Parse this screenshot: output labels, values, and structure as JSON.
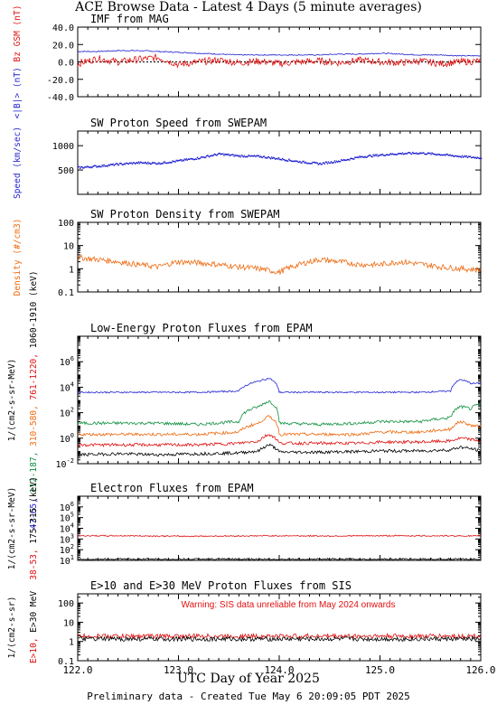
{
  "page": {
    "title": "ACE Browse Data - Latest 4 Days (5 minute averages)",
    "x_axis_label": "UTC Day of Year 2025",
    "footer": "Preliminary data - Created Tue May  6 20:09:05 PDT 2025",
    "x_ticks": [
      "122.0",
      "123.0",
      "124.0",
      "125.0",
      "126.0"
    ]
  },
  "chart_data": [
    {
      "type": "line",
      "title": "IMF from MAG",
      "ylabel_parts": [
        {
          "text": "<|B|>",
          "unit": " (nT)",
          "color": "#1f1fd0"
        },
        {
          "text": "Bz GSM",
          "unit": " (nT)",
          "color": "#e01010"
        }
      ],
      "ylim": [
        -40,
        40
      ],
      "yticks": [
        "40.0",
        "20.0",
        "0.0",
        "-20.0",
        "-40.0"
      ],
      "xlim": [
        122,
        126
      ],
      "series": [
        {
          "color": "#1f1fd0",
          "x": [
            122.0,
            122.2,
            122.4,
            122.6,
            122.8,
            123.0,
            123.2,
            123.4,
            123.6,
            123.8,
            124.0,
            124.2,
            124.4,
            124.6,
            124.8,
            125.0,
            125.2,
            125.4,
            125.6,
            125.8,
            126.0
          ],
          "y": [
            12,
            12,
            13,
            13,
            12,
            11,
            10,
            9,
            8,
            8,
            8,
            8,
            8,
            9,
            9,
            10,
            9,
            8,
            8,
            7,
            7
          ]
        },
        {
          "color": "#e01010",
          "x": [
            122.0,
            122.2,
            122.4,
            122.6,
            122.8,
            123.0,
            123.2,
            123.4,
            123.6,
            123.8,
            124.0,
            124.2,
            124.4,
            124.6,
            124.8,
            125.0,
            125.2,
            125.4,
            125.6,
            125.8,
            126.0
          ],
          "y": [
            -2,
            4,
            0,
            3,
            5,
            -3,
            0,
            2,
            -1,
            1,
            -2,
            0,
            1,
            -1,
            2,
            0,
            -1,
            1,
            -2,
            0,
            1
          ]
        }
      ]
    },
    {
      "type": "scatter",
      "title": "SW Proton Speed from SWEPAM",
      "ylabel_parts": [
        {
          "text": "Speed (km/sec)",
          "unit": "",
          "color": "#1f1fd0"
        }
      ],
      "ylim": [
        0,
        1300
      ],
      "yticks": [
        "1000",
        "500"
      ],
      "xlim": [
        122,
        126
      ],
      "series": [
        {
          "color": "#1f1fd0",
          "x": [
            122.0,
            122.2,
            122.4,
            122.6,
            122.8,
            123.0,
            123.2,
            123.4,
            123.6,
            123.8,
            124.0,
            124.2,
            124.4,
            124.6,
            124.8,
            125.0,
            125.2,
            125.4,
            125.6,
            125.8,
            126.0
          ],
          "y": [
            560,
            590,
            630,
            660,
            650,
            700,
            760,
            840,
            800,
            790,
            740,
            680,
            640,
            700,
            780,
            820,
            850,
            860,
            830,
            790,
            760
          ]
        }
      ]
    },
    {
      "type": "line",
      "title": "SW Proton Density from SWEPAM",
      "ylabel_parts": [
        {
          "text": "Density (#/cm3)",
          "unit": "",
          "color": "#ee6a10"
        }
      ],
      "ylim": [
        0.1,
        100
      ],
      "log": true,
      "yticks": [
        "100",
        "10",
        "1",
        "0.1"
      ],
      "xlim": [
        122,
        126
      ],
      "series": [
        {
          "color": "#ee6a10",
          "x": [
            122.0,
            122.2,
            122.4,
            122.6,
            122.8,
            123.0,
            123.2,
            123.4,
            123.6,
            123.8,
            124.0,
            124.2,
            124.4,
            124.6,
            124.8,
            125.0,
            125.2,
            125.4,
            125.6,
            125.8,
            126.0
          ],
          "y": [
            3,
            2.5,
            2,
            1.5,
            1.2,
            2,
            1.8,
            1.5,
            1.2,
            1,
            0.7,
            1.5,
            2.5,
            2,
            1.5,
            1.5,
            2,
            1.6,
            1.2,
            1,
            0.9
          ]
        }
      ]
    },
    {
      "type": "line",
      "title": "Low-Energy Proton Fluxes from EPAM",
      "ylabel_parts": [
        {
          "text": "47-65,",
          "unit": "",
          "color": "#1f1fd0"
        },
        {
          "text": "112-187,",
          "unit": "",
          "color": "#109040"
        },
        {
          "text": "310-580,",
          "unit": "",
          "color": "#ee6a10"
        },
        {
          "text": "761-1220,",
          "unit": "",
          "color": "#e01010"
        },
        {
          "text": "1060-1910 (keV)",
          "unit": "",
          "color": "#000000"
        }
      ],
      "yunit": "1/(cm2-s-sr-MeV)",
      "ylim": [
        0.01,
        100000000
      ],
      "log": true,
      "yticks": [
        "10^6",
        "10^4",
        "10^2",
        "10^0",
        "10^-2"
      ],
      "xlim": [
        122,
        126
      ],
      "series": [
        {
          "color": "#1f1fd0",
          "x": [
            122.0,
            122.4,
            122.8,
            123.2,
            123.6,
            123.8,
            123.9,
            124.0,
            124.4,
            124.8,
            125.0,
            125.4,
            125.7,
            125.8,
            125.9,
            126.0
          ],
          "y": [
            4000,
            4000,
            4000,
            4000,
            5000,
            30000,
            50000,
            4000,
            4000,
            4000,
            4000,
            4000,
            5000,
            40000,
            20000,
            20000
          ]
        },
        {
          "color": "#109040",
          "x": [
            122.0,
            122.4,
            122.8,
            123.2,
            123.6,
            123.8,
            123.9,
            124.0,
            124.4,
            124.8,
            125.0,
            125.4,
            125.7,
            125.8,
            125.9,
            126.0
          ],
          "y": [
            15,
            15,
            15,
            12,
            20,
            300,
            800,
            15,
            12,
            15,
            20,
            20,
            40,
            300,
            200,
            500
          ]
        },
        {
          "color": "#ee6a10",
          "x": [
            122.0,
            122.4,
            122.8,
            123.2,
            123.6,
            123.8,
            123.9,
            124.0,
            124.4,
            124.8,
            125.0,
            125.4,
            125.7,
            125.8,
            125.9,
            126.0
          ],
          "y": [
            2,
            2,
            2,
            2,
            3,
            15,
            50,
            2,
            2,
            2,
            3,
            3,
            5,
            20,
            10,
            8
          ]
        },
        {
          "color": "#e01010",
          "x": [
            122.0,
            122.4,
            122.8,
            123.2,
            123.6,
            123.8,
            123.9,
            124.0,
            124.4,
            124.8,
            125.0,
            125.4,
            125.7,
            125.8,
            125.9,
            126.0
          ],
          "y": [
            0.3,
            0.3,
            0.3,
            0.3,
            0.4,
            0.6,
            2,
            0.4,
            0.4,
            0.4,
            0.5,
            0.5,
            0.6,
            1,
            0.8,
            0.6
          ]
        },
        {
          "color": "#000000",
          "x": [
            122.0,
            122.4,
            122.8,
            123.2,
            123.6,
            123.8,
            123.9,
            124.0,
            124.4,
            124.8,
            125.0,
            125.4,
            125.7,
            125.8,
            125.9,
            126.0
          ],
          "y": [
            0.05,
            0.06,
            0.05,
            0.06,
            0.07,
            0.1,
            0.3,
            0.08,
            0.08,
            0.09,
            0.1,
            0.1,
            0.12,
            0.2,
            0.15,
            0.1
          ]
        }
      ]
    },
    {
      "type": "line",
      "title": "Electron Fluxes from EPAM",
      "ylabel_parts": [
        {
          "text": "38-53,",
          "unit": "",
          "color": "#e01010"
        },
        {
          "text": "175-315 (keV)",
          "unit": "",
          "color": "#000000"
        }
      ],
      "yunit": "1/(cm2-s-sr-MeV)",
      "ylim": [
        10,
        10000000
      ],
      "log": true,
      "yticks": [
        "10^6",
        "10^5",
        "10^4",
        "10^3",
        "10^2",
        "10^1"
      ],
      "xlim": [
        122,
        126
      ],
      "series": [
        {
          "color": "#e01010",
          "x": [
            122.0,
            122.5,
            123.0,
            123.5,
            124.0,
            124.5,
            125.0,
            125.5,
            126.0
          ],
          "y": [
            2000,
            2000,
            1800,
            1900,
            2000,
            1900,
            2000,
            2000,
            1900
          ]
        },
        {
          "color": "#000000",
          "x": [
            122.0,
            122.5,
            123.0,
            123.5,
            124.0,
            124.5,
            125.0,
            125.5,
            126.0
          ],
          "y": [
            12,
            12,
            12,
            12,
            12,
            12,
            12,
            12,
            12
          ]
        }
      ]
    },
    {
      "type": "line",
      "title": "E>10 and E>30 MeV Proton Fluxes from SIS",
      "annotation": "Warning: SIS data unreliable from May 2024 onwards",
      "ylabel_parts": [
        {
          "text": "E>10,",
          "unit": "",
          "color": "#e01010"
        },
        {
          "text": "E>30 MeV",
          "unit": "",
          "color": "#000000"
        }
      ],
      "yunit": "1/(cm2-s-sr)",
      "ylim": [
        0.1,
        300
      ],
      "log": true,
      "yticks": [
        "100",
        "10",
        "1",
        "0.1"
      ],
      "xlim": [
        122,
        126
      ],
      "series": [
        {
          "color": "#e01010",
          "x": [
            122.0,
            122.5,
            123.0,
            123.5,
            124.0,
            124.5,
            125.0,
            125.5,
            126.0
          ],
          "y": [
            1.9,
            1.9,
            1.9,
            1.9,
            1.9,
            1.9,
            1.9,
            1.9,
            1.9
          ]
        },
        {
          "color": "#000000",
          "x": [
            122.0,
            122.5,
            123.0,
            123.5,
            124.0,
            124.5,
            125.0,
            125.5,
            126.0
          ],
          "y": [
            1.35,
            1.35,
            1.35,
            1.35,
            1.35,
            1.35,
            1.35,
            1.35,
            1.35
          ]
        }
      ]
    }
  ]
}
